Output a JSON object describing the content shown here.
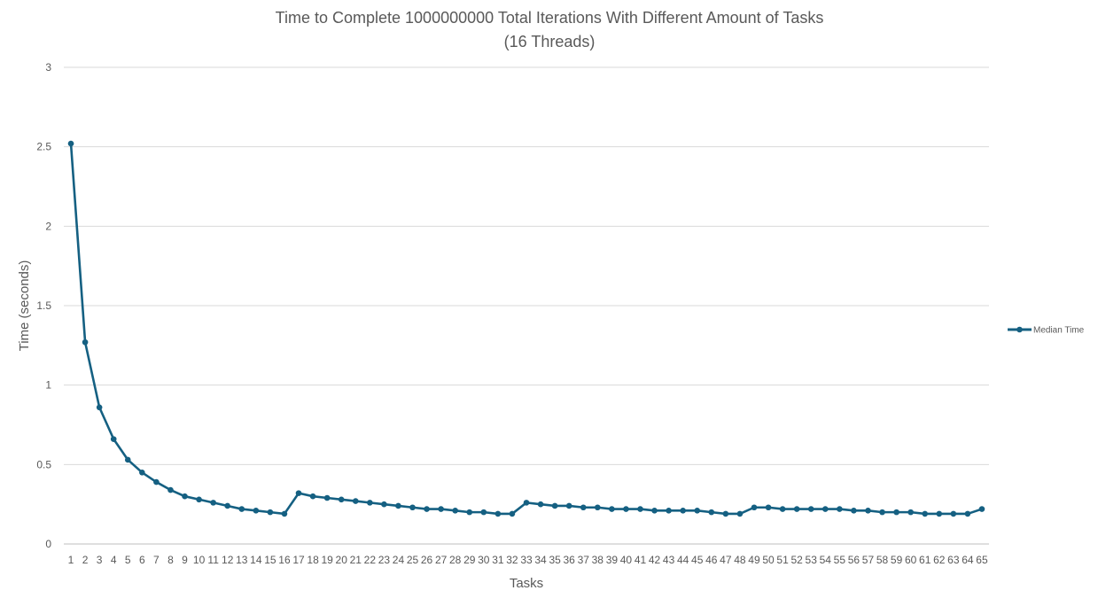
{
  "chart_data": {
    "type": "line",
    "title": "Time to Complete 1000000000 Total Iterations With Different Amount of Tasks",
    "subtitle": "(16 Threads)",
    "xlabel": "Tasks",
    "ylabel": "Time (seconds)",
    "ylim": [
      0,
      3
    ],
    "yticks": [
      "0",
      "0.5",
      "1",
      "1.5",
      "2",
      "2.5",
      "3"
    ],
    "grid": true,
    "legend_position": "right",
    "series_color": "#156082",
    "categories": [
      "1",
      "2",
      "3",
      "4",
      "5",
      "6",
      "7",
      "8",
      "9",
      "10",
      "11",
      "12",
      "13",
      "14",
      "15",
      "16",
      "17",
      "18",
      "19",
      "20",
      "21",
      "22",
      "23",
      "24",
      "25",
      "26",
      "27",
      "28",
      "29",
      "30",
      "31",
      "32",
      "33",
      "34",
      "35",
      "36",
      "37",
      "38",
      "39",
      "40",
      "41",
      "42",
      "43",
      "44",
      "45",
      "46",
      "47",
      "48",
      "49",
      "50",
      "51",
      "52",
      "53",
      "54",
      "55",
      "56",
      "57",
      "58",
      "59",
      "60",
      "61",
      "62",
      "63",
      "64",
      "65"
    ],
    "series": [
      {
        "name": "Median Time",
        "values": [
          2.52,
          1.27,
          0.86,
          0.66,
          0.53,
          0.45,
          0.39,
          0.34,
          0.3,
          0.28,
          0.26,
          0.24,
          0.22,
          0.21,
          0.2,
          0.19,
          0.32,
          0.3,
          0.29,
          0.28,
          0.27,
          0.26,
          0.25,
          0.24,
          0.23,
          0.22,
          0.22,
          0.21,
          0.2,
          0.2,
          0.19,
          0.19,
          0.26,
          0.25,
          0.24,
          0.24,
          0.23,
          0.23,
          0.22,
          0.22,
          0.22,
          0.21,
          0.21,
          0.21,
          0.21,
          0.2,
          0.19,
          0.19,
          0.23,
          0.23,
          0.22,
          0.22,
          0.22,
          0.22,
          0.22,
          0.21,
          0.21,
          0.2,
          0.2,
          0.2,
          0.19,
          0.19,
          0.19,
          0.19,
          0.22
        ]
      }
    ]
  }
}
